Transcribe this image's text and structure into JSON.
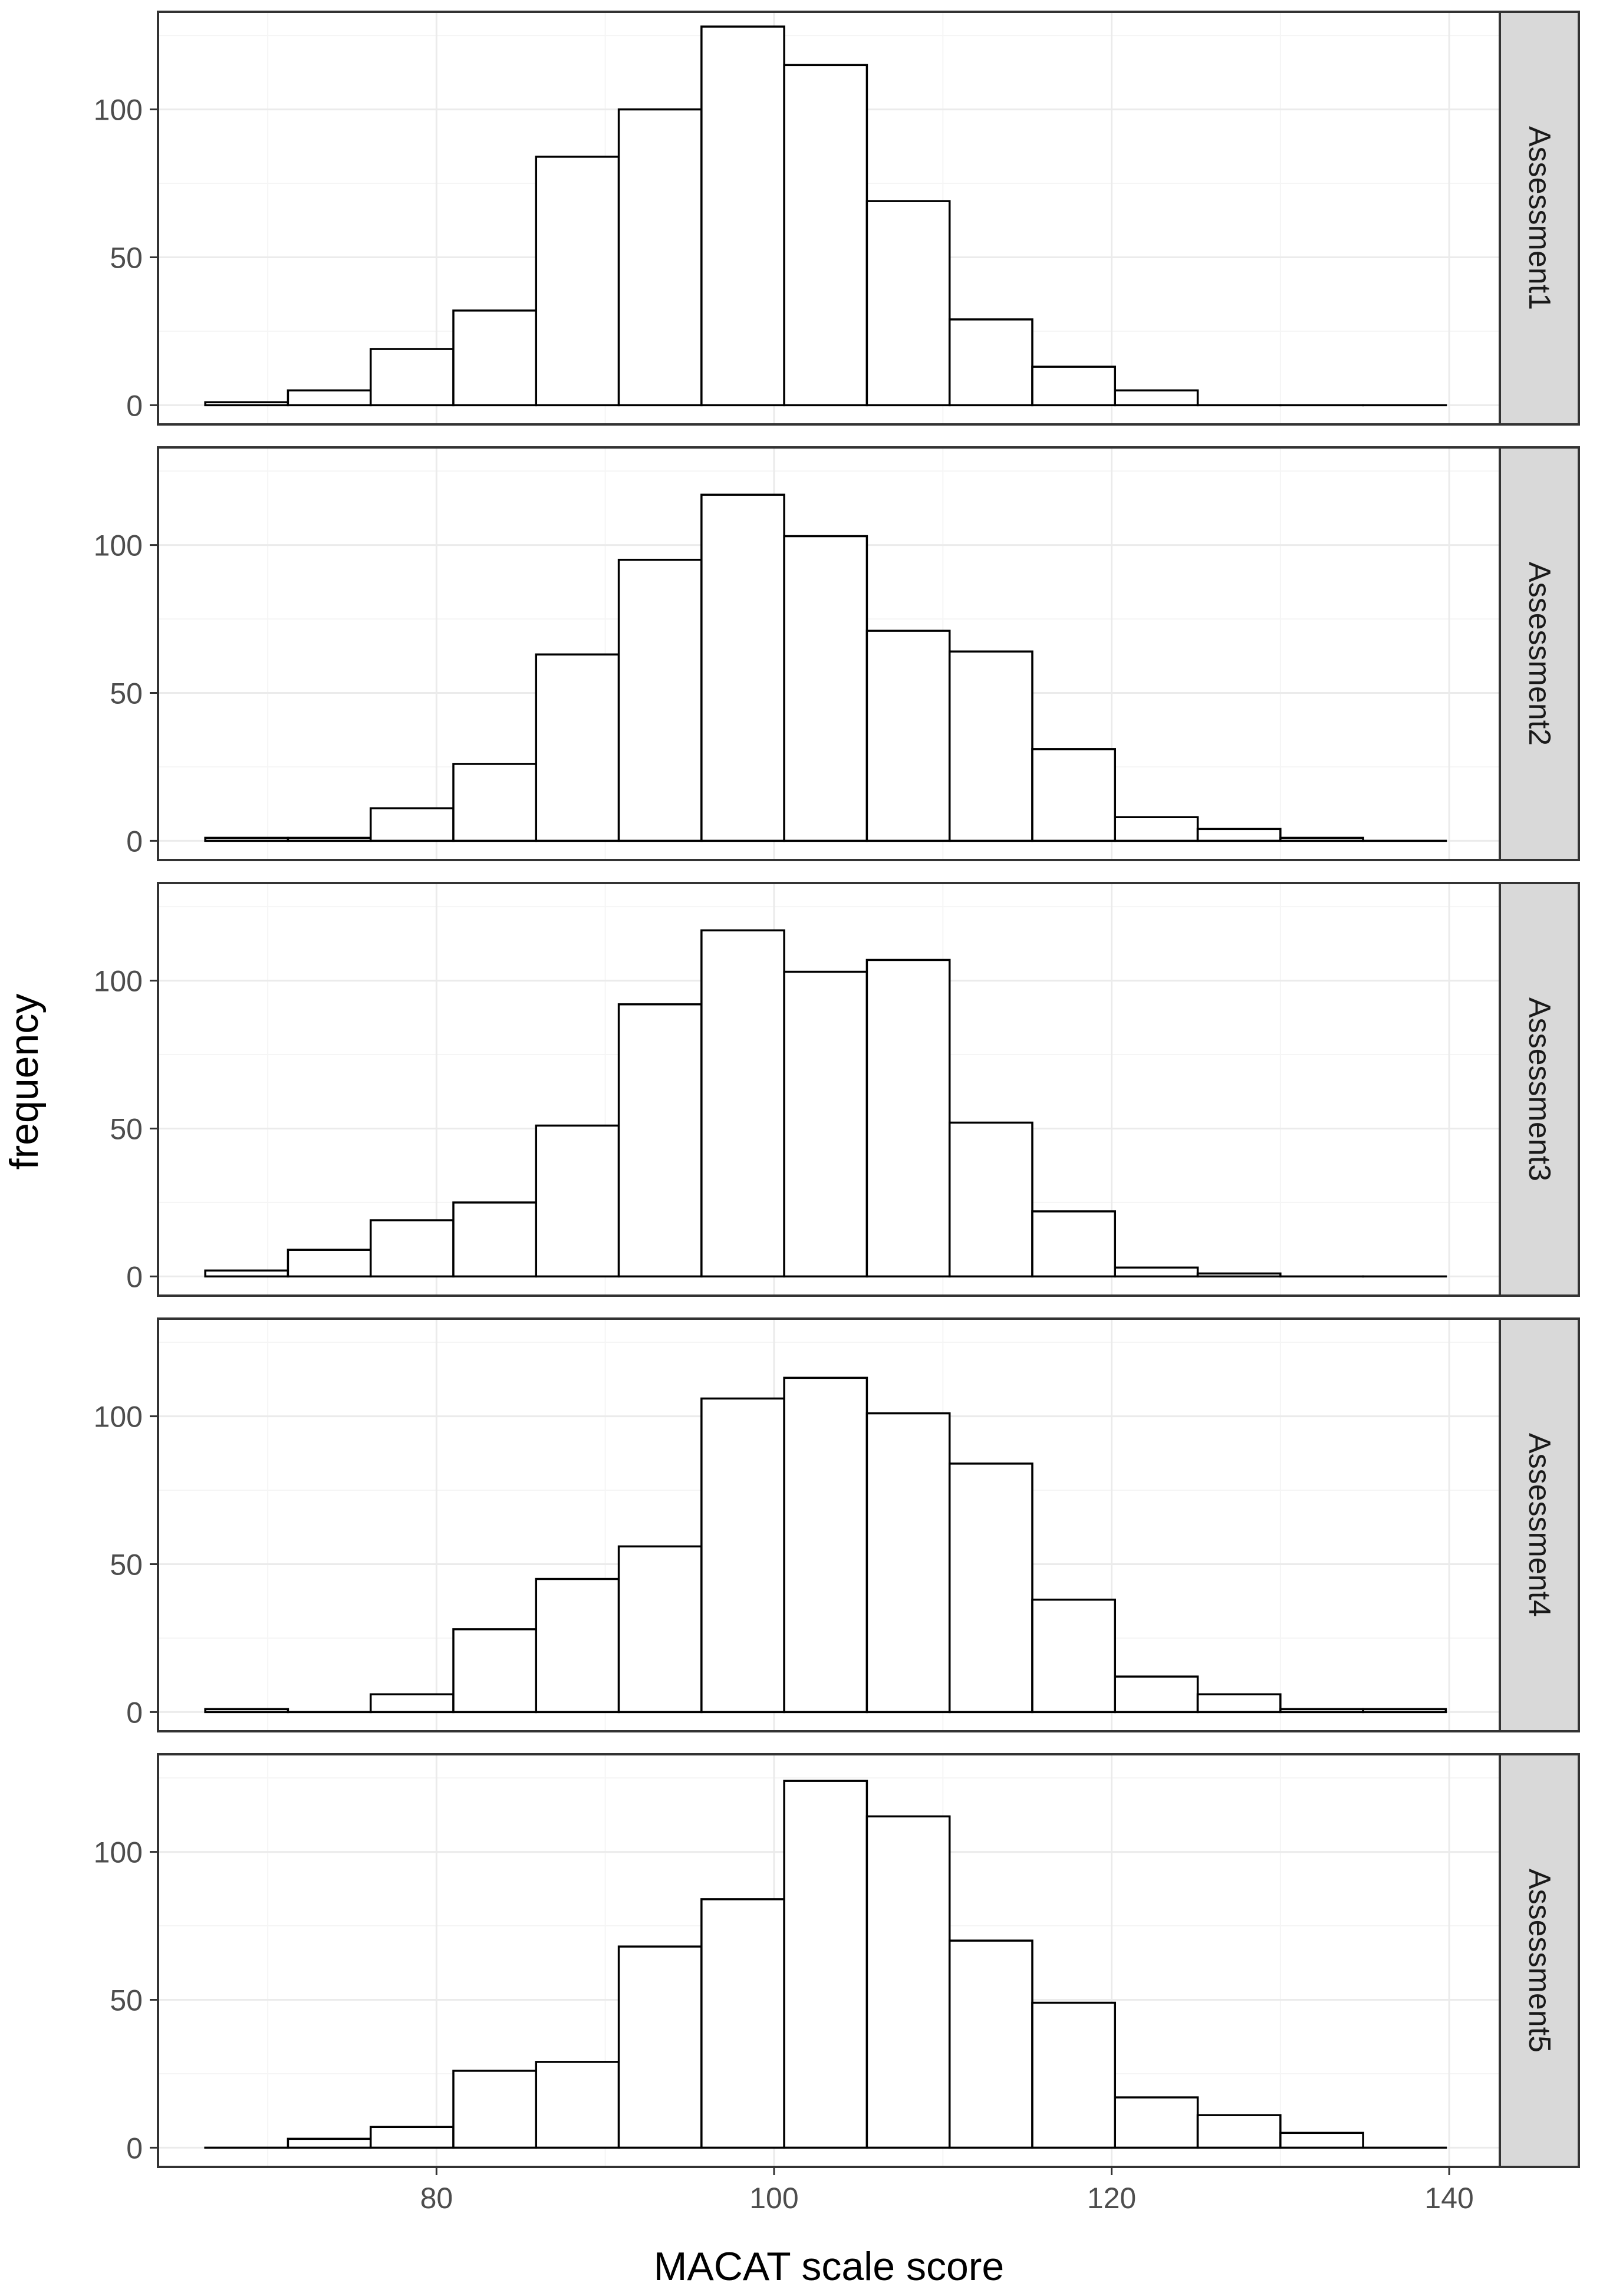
{
  "chart_data": {
    "type": "histogram",
    "xlabel": "MACAT scale score",
    "ylabel": "frequency",
    "xlim": [
      63.5,
      143
    ],
    "ylim": [
      -6.5,
      133
    ],
    "x_ticks": [
      80,
      100,
      120,
      140
    ],
    "y_ticks": [
      0,
      50,
      100
    ],
    "bin_width": 4.9,
    "bin_starts": [
      66.3,
      71.2,
      76.1,
      81.0,
      85.9,
      90.8,
      95.7,
      100.6,
      105.5,
      110.4,
      115.3,
      120.2,
      125.1,
      130.0,
      134.9
    ],
    "panels": [
      {
        "label": "Assessment1",
        "values": [
          1,
          5,
          19,
          32,
          84,
          100,
          128,
          115,
          69,
          29,
          13,
          5,
          0,
          0,
          0
        ]
      },
      {
        "label": "Assessment2",
        "values": [
          1,
          1,
          11,
          26,
          63,
          95,
          117,
          103,
          71,
          64,
          31,
          8,
          4,
          1,
          0
        ]
      },
      {
        "label": "Assessment3",
        "values": [
          2,
          9,
          19,
          25,
          51,
          92,
          117,
          103,
          107,
          52,
          22,
          3,
          1,
          0,
          0
        ]
      },
      {
        "label": "Assessment4",
        "values": [
          1,
          0,
          6,
          28,
          45,
          56,
          106,
          113,
          101,
          84,
          38,
          12,
          6,
          1,
          1
        ]
      },
      {
        "label": "Assessment5",
        "values": [
          0,
          3,
          7,
          26,
          29,
          68,
          84,
          124,
          112,
          70,
          49,
          17,
          11,
          5,
          0
        ]
      }
    ],
    "colors": {
      "bar_fill": "#ffffff",
      "bar_stroke": "#000000",
      "grid_major": "#ebebeb",
      "grid_minor": "#f5f5f5",
      "panel_border": "#333333",
      "strip_fill": "#d9d9d9"
    }
  }
}
